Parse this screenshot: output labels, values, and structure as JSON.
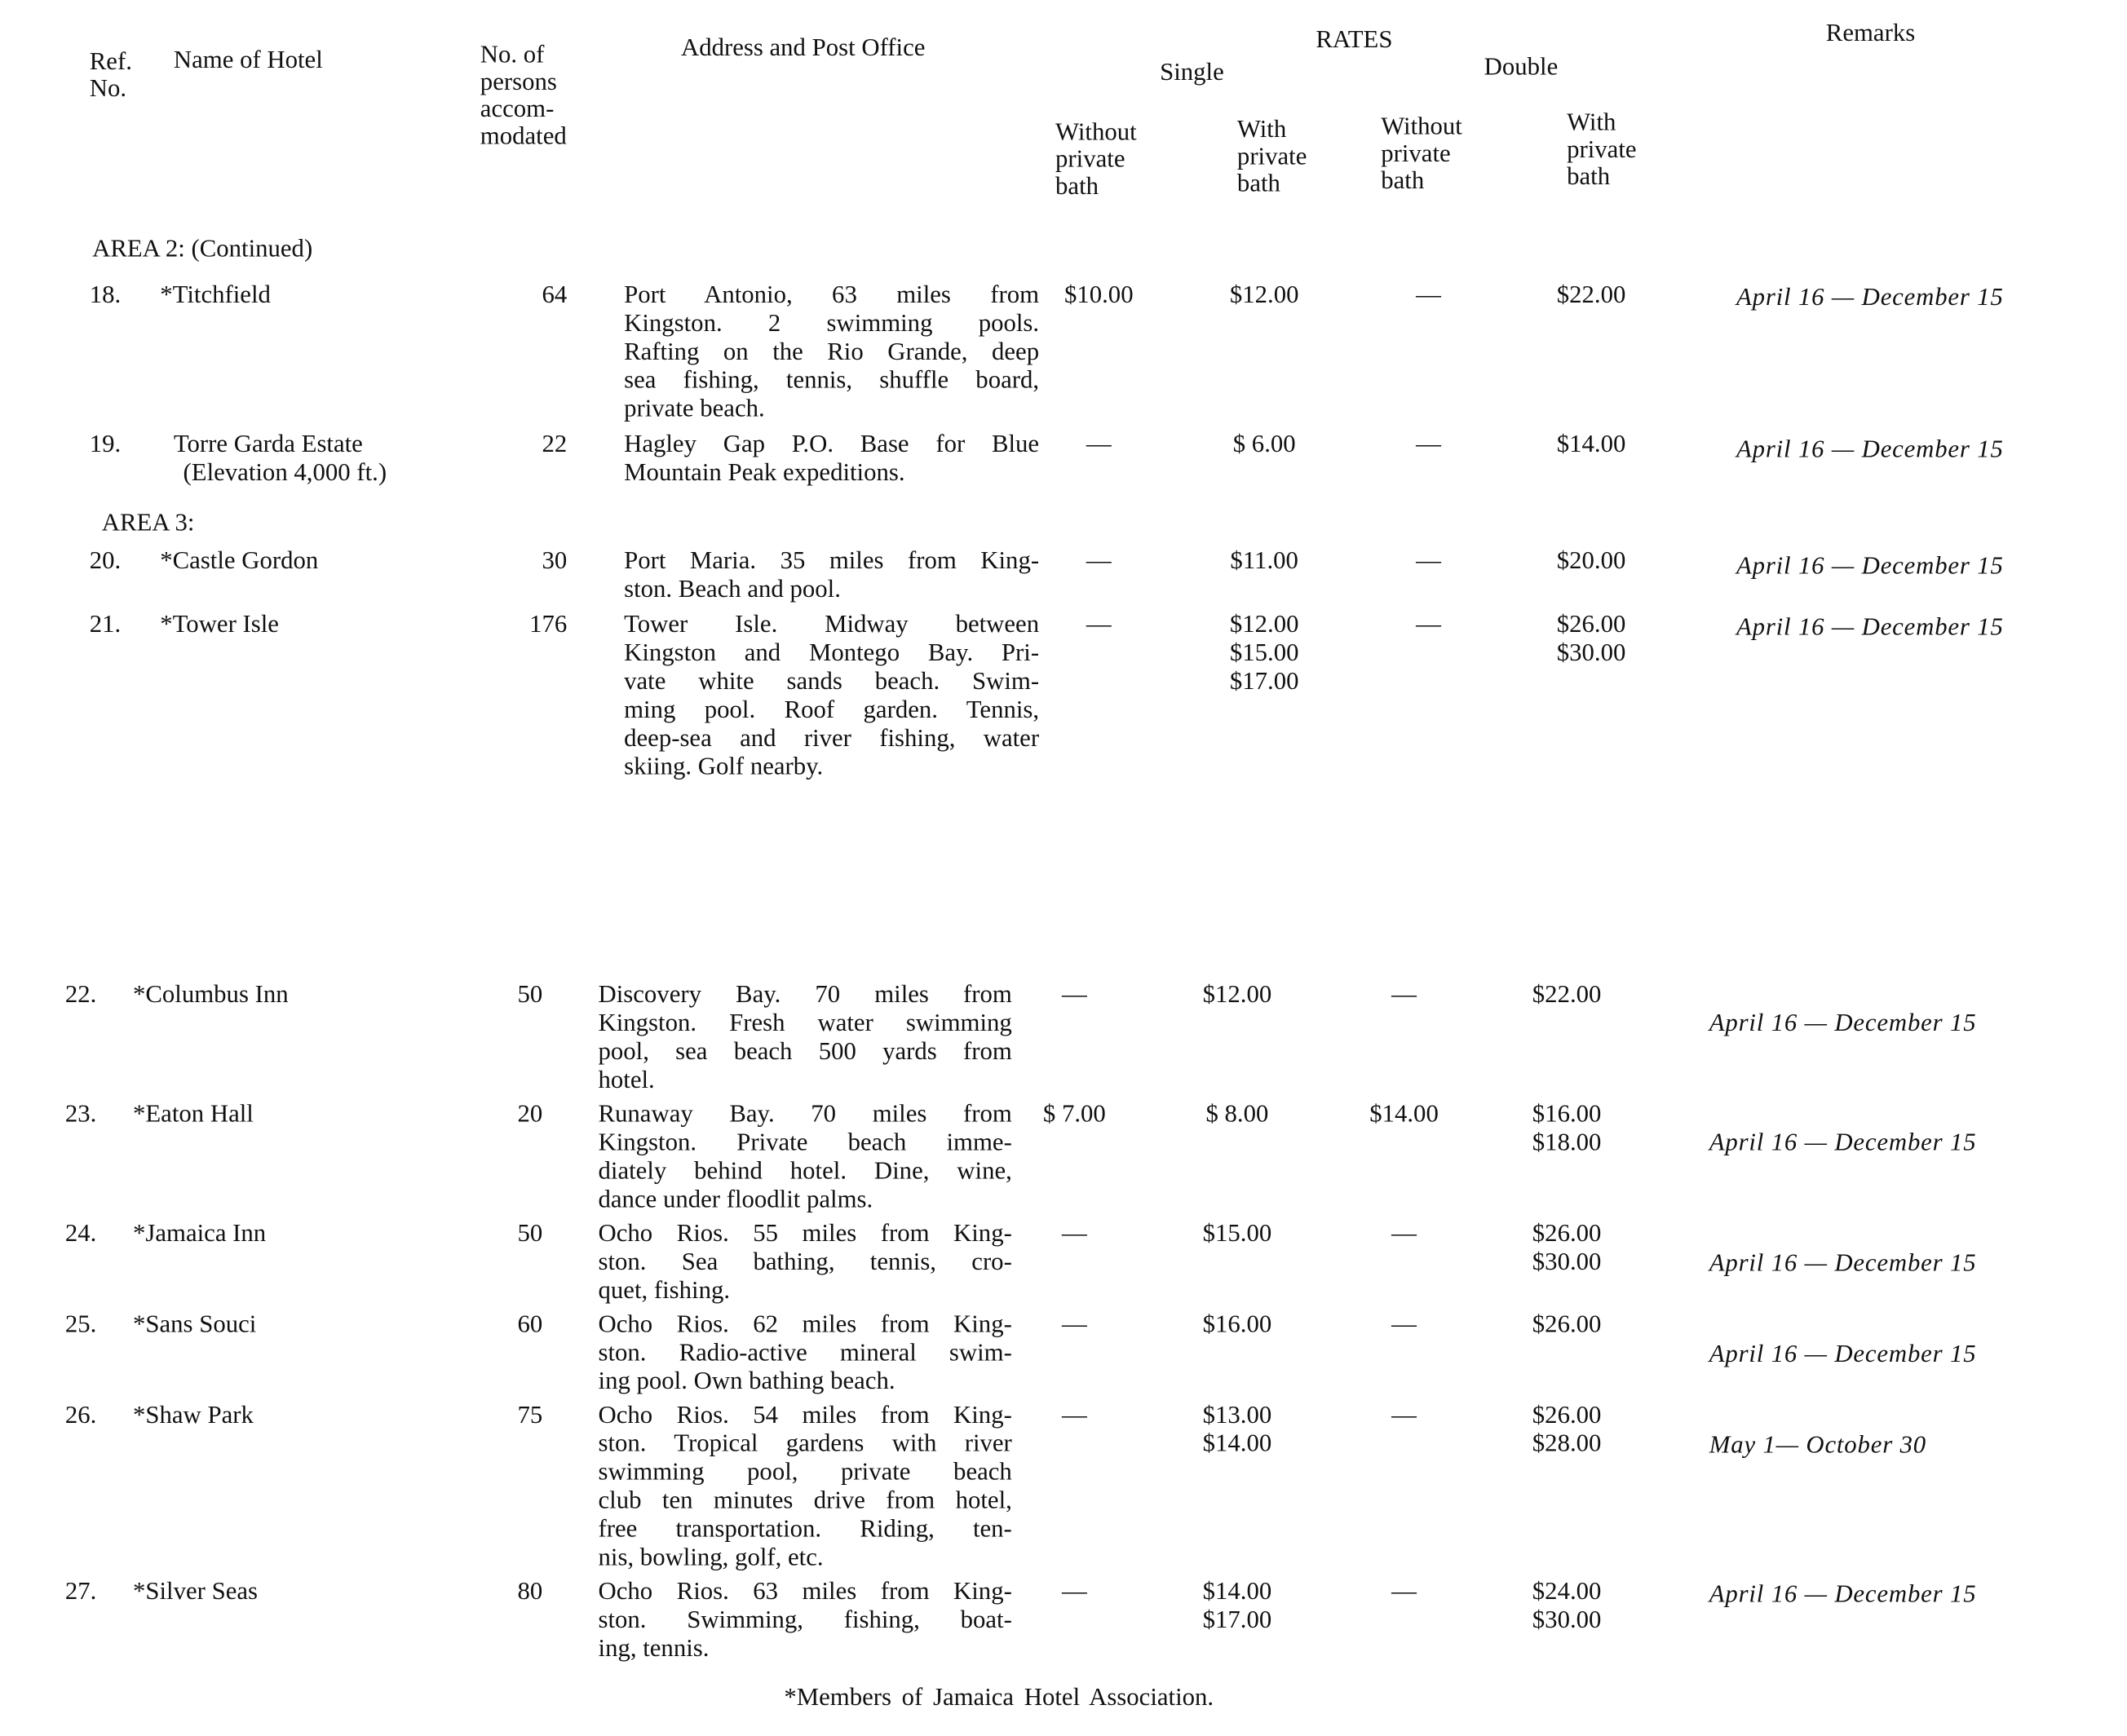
{
  "header": {
    "ref_no": [
      "Ref.",
      "No."
    ],
    "name_of_hotel": "Name of Hotel",
    "persons": [
      "No. of",
      "persons",
      "accom-",
      "modated"
    ],
    "address": "Address and Post Office",
    "rates": "RATES",
    "single": "Single",
    "double": "Double",
    "remarks": "Remarks",
    "without_private_bath": [
      "Without",
      "private",
      "bath"
    ],
    "with_private_bath": [
      "With",
      "private",
      "bath"
    ]
  },
  "areas": [
    {
      "label": "AREA 2:  (Continued)"
    },
    {
      "label": "AREA 3:"
    }
  ],
  "rows": [
    {
      "ref": "18.",
      "name": "*Titchfield",
      "persons": "64",
      "address": [
        "Port Antonio, 63 miles from",
        "Kingston. 2 swimming pools.",
        "Rafting on the Rio Grande, deep",
        "sea fishing, tennis, shuffle board,",
        "private beach."
      ],
      "single_without": [
        "$10.00"
      ],
      "single_with": [
        "$12.00"
      ],
      "double_without": [
        "—"
      ],
      "double_with": [
        "$22.00"
      ],
      "remarks": "April 16 — December 15"
    },
    {
      "ref": "19.",
      "name": "Torre Garda Estate",
      "name_line2": "(Elevation 4,000 ft.)",
      "persons": "22",
      "address": [
        "Hagley Gap P.O. Base for Blue",
        "Mountain Peak expeditions."
      ],
      "single_without": [
        "—"
      ],
      "single_with": [
        "$ 6.00"
      ],
      "double_without": [
        "—"
      ],
      "double_with": [
        "$14.00"
      ],
      "remarks": "April 16 — December 15"
    },
    {
      "ref": "20.",
      "name": "*Castle Gordon",
      "persons": "30",
      "address": [
        "Port Maria. 35 miles from King-",
        "ston.  Beach and pool."
      ],
      "single_without": [
        "—"
      ],
      "single_with": [
        "$11.00"
      ],
      "double_without": [
        "—"
      ],
      "double_with": [
        "$20.00"
      ],
      "remarks": "April 16 — December 15"
    },
    {
      "ref": "21.",
      "name": "*Tower Isle",
      "persons": "176",
      "address": [
        "Tower Isle. Midway between",
        "Kingston and Montego Bay. Pri-",
        "vate white sands beach. Swim-",
        "ming pool. Roof garden. Tennis,",
        "deep-sea and river fishing, water",
        "skiing.  Golf nearby."
      ],
      "single_without": [
        "—"
      ],
      "single_with": [
        "$12.00",
        "$15.00",
        "$17.00"
      ],
      "double_without": [
        "—"
      ],
      "double_with": [
        "$26.00",
        "$30.00"
      ],
      "remarks": "April 16 — December 15"
    },
    {
      "ref": "22.",
      "name": "*Columbus Inn",
      "persons": "50",
      "address": [
        "Discovery Bay. 70 miles from",
        "Kingston. Fresh water swimming",
        "pool, sea beach 500 yards from",
        "hotel."
      ],
      "single_without": [
        "—"
      ],
      "single_with": [
        "$12.00"
      ],
      "double_without": [
        "—"
      ],
      "double_with": [
        "$22.00"
      ],
      "remarks": "April 16 — December 15"
    },
    {
      "ref": "23.",
      "name": "*Eaton Hall",
      "persons": "20",
      "address": [
        "Runaway Bay. 70 miles from",
        "Kingston. Private beach imme-",
        "diately behind hotel. Dine, wine,",
        "dance under floodlit palms."
      ],
      "single_without": [
        "$ 7.00"
      ],
      "single_with": [
        "$ 8.00"
      ],
      "double_without": [
        "$14.00"
      ],
      "double_with": [
        "$16.00",
        "$18.00"
      ],
      "remarks": "April 16 — December 15"
    },
    {
      "ref": "24.",
      "name": "*Jamaica Inn",
      "persons": "50",
      "address": [
        "Ocho Rios. 55 miles from King-",
        "ston. Sea bathing, tennis, cro-",
        "quet, fishing."
      ],
      "single_without": [
        "—"
      ],
      "single_with": [
        "$15.00"
      ],
      "double_without": [
        "—"
      ],
      "double_with": [
        "$26.00",
        "$30.00"
      ],
      "remarks": "April 16 — December 15"
    },
    {
      "ref": "25.",
      "name": "*Sans Souci",
      "persons": "60",
      "address": [
        "Ocho Rios. 62 miles from King-",
        "ston. Radio-active mineral swim-",
        "ing pool. Own bathing beach."
      ],
      "single_without": [
        "—"
      ],
      "single_with": [
        "$16.00"
      ],
      "double_without": [
        "—"
      ],
      "double_with": [
        "$26.00"
      ],
      "remarks": "April 16 — December 15"
    },
    {
      "ref": "26.",
      "name": "*Shaw Park",
      "persons": "75",
      "address": [
        "Ocho Rios. 54 miles from King-",
        "ston. Tropical gardens with river",
        "swimming pool, private beach",
        "club ten minutes drive from hotel,",
        "free transportation. Riding, ten-",
        "nis, bowling, golf, etc."
      ],
      "single_without": [
        "—"
      ],
      "single_with": [
        "$13.00",
        "$14.00"
      ],
      "double_without": [
        "—"
      ],
      "double_with": [
        "$26.00",
        "$28.00"
      ],
      "remarks": "May 1— October 30"
    },
    {
      "ref": "27.",
      "name": "*Silver Seas",
      "persons": "80",
      "address": [
        "Ocho Rios. 63 miles from King-",
        "ston. Swimming, fishing, boat-",
        "ing, tennis."
      ],
      "single_without": [
        "—"
      ],
      "single_with": [
        "$14.00",
        "$17.00"
      ],
      "double_without": [
        "—"
      ],
      "double_with": [
        "$24.00",
        "$30.00"
      ],
      "remarks": "April 16 — December 15"
    }
  ],
  "footer": "*Members of Jamaica Hotel Association."
}
